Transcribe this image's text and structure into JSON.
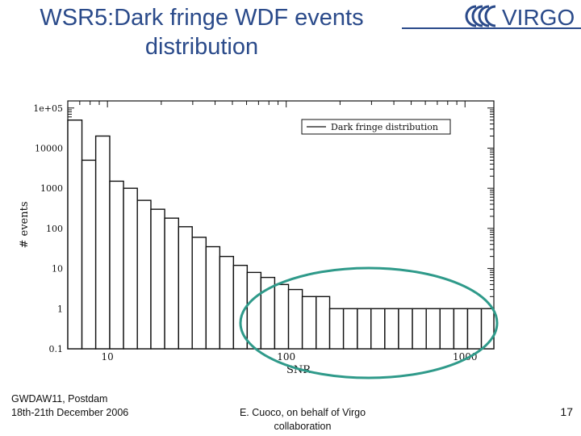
{
  "slide": {
    "title_line1": "WSR5:Dark fringe WDF events",
    "title_line2": "distribution",
    "logo_text": "VIRGO",
    "footer_left_line1": "GWDAW11,  Postdam",
    "footer_left_line2": "18th-21th December 2006",
    "footer_center_line1": "E. Cuoco, on behalf of Virgo",
    "footer_center_line2": "collaboration",
    "page_number": "17"
  },
  "colors": {
    "title": "#2a4a8a",
    "highlight_ellipse": "#2f9a8a"
  },
  "chart_data": {
    "type": "bar",
    "title": "",
    "xlabel": "SNR",
    "ylabel": "# events",
    "xscale": "log",
    "yscale": "log",
    "xlim": [
      6,
      1450
    ],
    "ylim": [
      0.1,
      150000
    ],
    "xticks": [
      10,
      100,
      1000
    ],
    "xtick_labels": [
      "10",
      "100",
      "1000"
    ],
    "yticks": [
      0.1,
      1,
      10,
      100,
      1000,
      10000,
      100000
    ],
    "ytick_labels": [
      "0.1",
      "1",
      "10",
      "100",
      "1000",
      "10000",
      "1e+05"
    ],
    "legend": {
      "label": "Dark fringe distribution",
      "position": "top-right"
    },
    "annotation": "ellipse highlighting the high-SNR tail",
    "series": [
      {
        "name": "Dark fringe distribution",
        "bins": [
          {
            "x0": 6.0,
            "x1": 7.2,
            "count": 50000
          },
          {
            "x0": 7.2,
            "x1": 8.6,
            "count": 5000
          },
          {
            "x0": 8.6,
            "x1": 10.3,
            "count": 20000
          },
          {
            "x0": 10.3,
            "x1": 12.3,
            "count": 1500
          },
          {
            "x0": 12.3,
            "x1": 14.7,
            "count": 1000
          },
          {
            "x0": 14.7,
            "x1": 17.5,
            "count": 500
          },
          {
            "x0": 17.5,
            "x1": 20.9,
            "count": 300
          },
          {
            "x0": 20.9,
            "x1": 25.0,
            "count": 180
          },
          {
            "x0": 25.0,
            "x1": 29.8,
            "count": 110
          },
          {
            "x0": 29.8,
            "x1": 35.6,
            "count": 60
          },
          {
            "x0": 35.6,
            "x1": 42.5,
            "count": 35
          },
          {
            "x0": 42.5,
            "x1": 50.7,
            "count": 20
          },
          {
            "x0": 50.7,
            "x1": 60.5,
            "count": 12
          },
          {
            "x0": 60.5,
            "x1": 72.2,
            "count": 8
          },
          {
            "x0": 72.2,
            "x1": 86.2,
            "count": 6
          },
          {
            "x0": 86.2,
            "x1": 103.0,
            "count": 4
          },
          {
            "x0": 103.0,
            "x1": 123.0,
            "count": 3
          },
          {
            "x0": 123.0,
            "x1": 147.0,
            "count": 2
          },
          {
            "x0": 147.0,
            "x1": 175.0,
            "count": 2
          },
          {
            "x0": 175.0,
            "x1": 209.0,
            "count": 1
          },
          {
            "x0": 209.0,
            "x1": 250.0,
            "count": 1
          },
          {
            "x0": 250.0,
            "x1": 298.0,
            "count": 1
          },
          {
            "x0": 298.0,
            "x1": 356.0,
            "count": 1
          },
          {
            "x0": 356.0,
            "x1": 425.0,
            "count": 1
          },
          {
            "x0": 425.0,
            "x1": 508.0,
            "count": 1
          },
          {
            "x0": 508.0,
            "x1": 607.0,
            "count": 1
          },
          {
            "x0": 607.0,
            "x1": 725.0,
            "count": 1
          },
          {
            "x0": 725.0,
            "x1": 866.0,
            "count": 1
          },
          {
            "x0": 866.0,
            "x1": 1034.0,
            "count": 1
          },
          {
            "x0": 1034.0,
            "x1": 1235.0,
            "count": 1
          },
          {
            "x0": 1235.0,
            "x1": 1450.0,
            "count": 1
          }
        ]
      }
    ]
  }
}
